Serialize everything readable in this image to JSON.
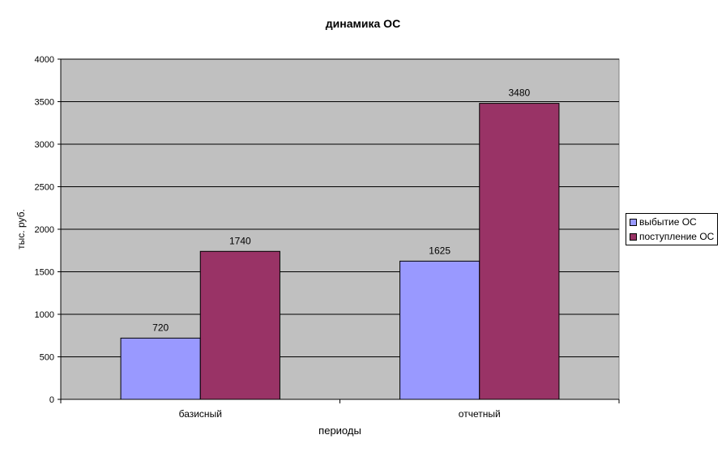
{
  "chart_data": {
    "type": "bar",
    "title": "динамика ОС",
    "xlabel": "периоды",
    "ylabel": "тыс. руб.",
    "categories": [
      "базисный",
      "отчетный"
    ],
    "series": [
      {
        "name": "выбытие ОС",
        "values": [
          720,
          1625
        ],
        "color": "#9999FF"
      },
      {
        "name": "поступление ОС",
        "values": [
          1740,
          3480
        ],
        "color": "#993366"
      }
    ],
    "ylim": [
      0,
      4000
    ],
    "yticks": [
      0,
      500,
      1000,
      1500,
      2000,
      2500,
      3000,
      3500,
      4000
    ],
    "grid": true,
    "plot_background": "#C0C0C0",
    "legend_position": "right"
  }
}
